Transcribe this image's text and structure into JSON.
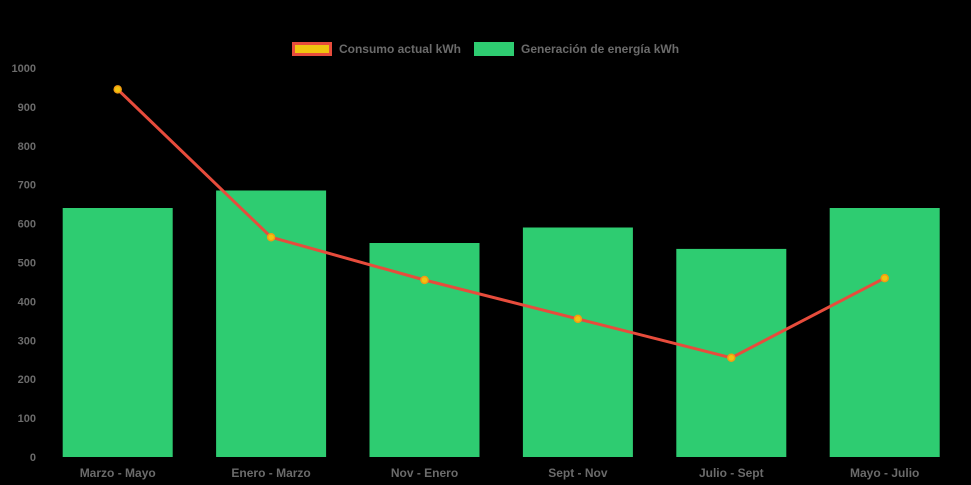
{
  "chart_data": {
    "type": "bar",
    "title": "",
    "xlabel": "",
    "ylabel": "",
    "categories": [
      "Marzo - Mayo",
      "Enero - Marzo",
      "Nov - Enero",
      "Sept - Nov",
      "Julio - Sept",
      "Mayo - Julio"
    ],
    "series": [
      {
        "name": "Consumo actual kWh",
        "type": "line",
        "values": [
          945,
          565,
          455,
          355,
          255,
          460
        ],
        "line_color": "#e74c3c",
        "point_fill": "#f1c40f",
        "point_border": "#f39c12"
      },
      {
        "name": "Generación de energía kWh",
        "type": "bar",
        "values": [
          640,
          685,
          550,
          590,
          535,
          640
        ],
        "color": "#2ecc71"
      }
    ],
    "ylim": [
      0,
      1000
    ],
    "ytick_step": 100,
    "yticks": [
      0,
      100,
      200,
      300,
      400,
      500,
      600,
      700,
      800,
      900,
      1000
    ],
    "legend_position": "top",
    "grid": false,
    "background": "#000000",
    "text_color": "#6b6b6b"
  }
}
